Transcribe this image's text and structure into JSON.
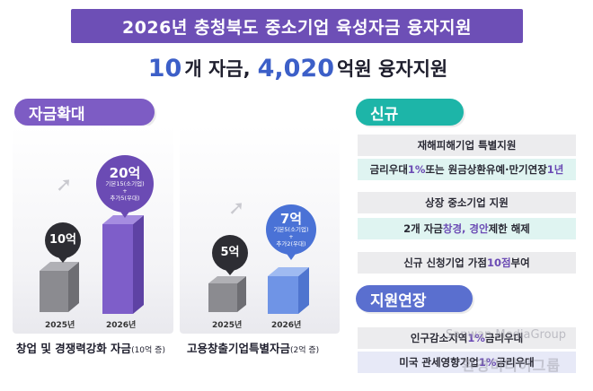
{
  "header": {
    "title": "2026년 충청북도 중소기업 육성자금 융자지원",
    "headline_pre": "10",
    "headline_mid": "개 자금,",
    "headline_amount": "4,020",
    "headline_post": "억원 융자지원"
  },
  "expand": {
    "tag": "자금확대",
    "fund1": {
      "before_amount": "10억",
      "after_amount": "20억",
      "after_note_1": "기본15(소기업)",
      "after_note_plus": "+",
      "after_note_2": "추가5(우대)",
      "year_before": "2025년",
      "year_after": "2026년",
      "label": "창업 및 경쟁력강화 자금",
      "label_unit": "(10억 증)"
    },
    "fund2": {
      "before_amount": "5억",
      "after_amount": "7억",
      "after_note_1": "기본5(소기업)",
      "after_note_plus": "+",
      "after_note_2": "추가2(우대)",
      "year_before": "2025년",
      "year_after": "2026년",
      "label": "고용창출기업특별자금",
      "label_unit": "(2억 증)"
    }
  },
  "new": {
    "tag": "신규",
    "row1_title": "재해피해기업 특별지원",
    "row1_detail_a": "금리우대 ",
    "row1_detail_b": "1%",
    "row1_detail_c": " 또는 원금상환유예·만기연장 ",
    "row1_detail_d": "1년",
    "row2_title": "상장 중소기업 지원",
    "row2_detail_a": "2개 자금 ",
    "row2_detail_b": "창경, 경안",
    "row2_detail_c": " 제한 해제",
    "row3_a": "신규 신청기업 가점 ",
    "row3_b": "10점",
    "row3_c": " 부여"
  },
  "extend": {
    "tag": "지원연장",
    "row1_a": "인구감소지역 ",
    "row1_b": "1%",
    "row1_c": " 금리우대",
    "row2_a": "미국 관세영향기업 ",
    "row2_b": "1%",
    "row2_c": " 금리우대"
  },
  "watermark": {
    "line1": "Sanwan MediaGroup",
    "line2": "환경미디어그룹"
  },
  "colors": {
    "purple": "#6d4fb6",
    "teal": "#1db5a8",
    "blue": "#4a72d6",
    "dark": "#2d2d33"
  }
}
